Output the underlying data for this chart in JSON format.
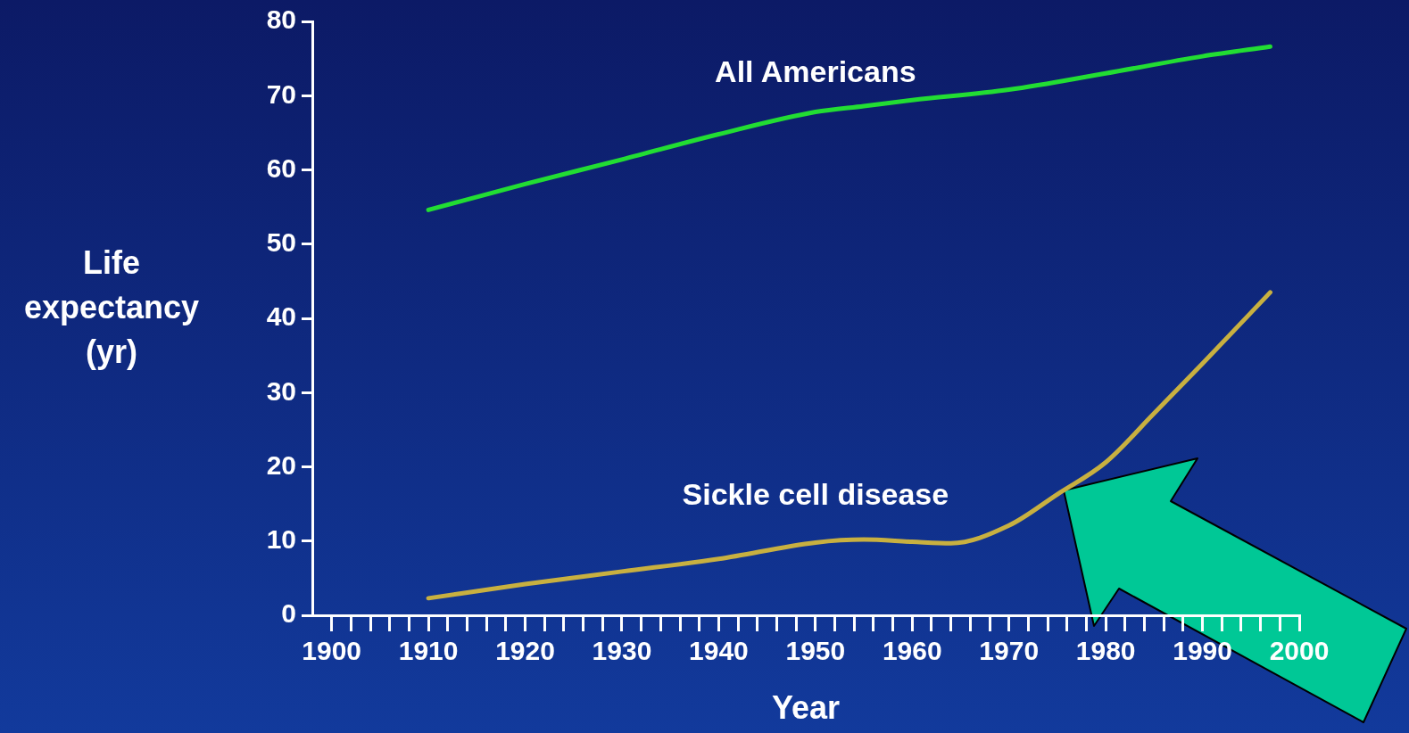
{
  "chart_data": {
    "type": "line",
    "xlabel": "Year",
    "ylabel": "Life expectancy (yr)",
    "xlim": [
      1898,
      2000
    ],
    "ylim": [
      0,
      80
    ],
    "yticks": [
      0,
      10,
      20,
      30,
      40,
      50,
      60,
      70,
      80
    ],
    "xticks": [
      1900,
      {
        "value": 1902,
        "label": null
      },
      {
        "value": 1904,
        "label": null
      },
      {
        "value": 1906,
        "label": null
      },
      {
        "value": 1908,
        "label": null
      },
      1910,
      {
        "value": 1912,
        "label": null
      },
      {
        "value": 1914,
        "label": null
      },
      {
        "value": 1916,
        "label": null
      },
      {
        "value": 1918,
        "label": null
      },
      1920,
      {
        "value": 1922,
        "label": null
      },
      {
        "value": 1924,
        "label": null
      },
      {
        "value": 1926,
        "label": null
      },
      {
        "value": 1928,
        "label": null
      },
      1930,
      {
        "value": 1932,
        "label": null
      },
      {
        "value": 1934,
        "label": null
      },
      {
        "value": 1936,
        "label": null
      },
      {
        "value": 1938,
        "label": null
      },
      1940,
      {
        "value": 1942,
        "label": null
      },
      {
        "value": 1944,
        "label": null
      },
      {
        "value": 1946,
        "label": null
      },
      {
        "value": 1948,
        "label": null
      },
      1950,
      {
        "value": 1952,
        "label": null
      },
      {
        "value": 1954,
        "label": null
      },
      {
        "value": 1956,
        "label": null
      },
      {
        "value": 1958,
        "label": null
      },
      1960,
      {
        "value": 1962,
        "label": null
      },
      {
        "value": 1964,
        "label": null
      },
      {
        "value": 1966,
        "label": null
      },
      {
        "value": 1968,
        "label": null
      },
      1970,
      {
        "value": 1972,
        "label": null
      },
      {
        "value": 1974,
        "label": null
      },
      {
        "value": 1976,
        "label": null
      },
      {
        "value": 1978,
        "label": null
      },
      1980,
      {
        "value": 1982,
        "label": null
      },
      {
        "value": 1984,
        "label": null
      },
      {
        "value": 1986,
        "label": null
      },
      {
        "value": 1988,
        "label": null
      },
      1990,
      {
        "value": 1992,
        "label": null
      },
      {
        "value": 1994,
        "label": null
      },
      {
        "value": 1996,
        "label": null
      },
      {
        "value": 1998,
        "label": null
      },
      2000
    ],
    "grid": false,
    "legend": false,
    "marker": "none",
    "line_style": "solid",
    "series": [
      {
        "name": "All Americans",
        "color": "#22dd33",
        "x": [
          1910,
          1920,
          1930,
          1940,
          1950,
          1955,
          1960,
          1970,
          1980,
          1990,
          1997
        ],
        "values": [
          54.6,
          58.1,
          61.4,
          64.8,
          67.8,
          68.6,
          69.4,
          70.8,
          73,
          75.3,
          76.6
        ]
      },
      {
        "name": "Sickle cell disease",
        "color": "#c8b040",
        "x": [
          1910,
          1920,
          1930,
          1940,
          1950,
          1955,
          1960,
          1964,
          1970,
          1975,
          1980,
          1985,
          1990,
          1997
        ],
        "values": [
          2.3,
          4.2,
          5.9,
          7.6,
          9.8,
          10.2,
          9.9,
          9.7,
          12.1,
          16.3,
          20.6,
          27.2,
          33.9,
          43.5
        ]
      }
    ]
  }
}
